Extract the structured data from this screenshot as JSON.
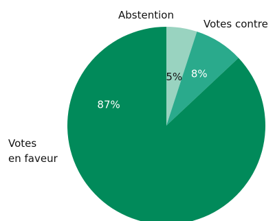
{
  "chart_data": {
    "type": "pie",
    "title": "",
    "slices": [
      {
        "label": "Abstention",
        "value": 5,
        "display": "5%",
        "color": "#99d3c0",
        "label_color": "#111111"
      },
      {
        "label": "Votes contre",
        "value": 8,
        "display": "8%",
        "color": "#2aaa8c",
        "label_color": "#ffffff"
      },
      {
        "label_lines": [
          "Votes",
          "en faveur"
        ],
        "value": 87,
        "display": "87%",
        "color": "#018a5a",
        "label_color": "#ffffff"
      }
    ],
    "start_angle_deg": 0,
    "direction": "clockwise",
    "legend": "none"
  }
}
